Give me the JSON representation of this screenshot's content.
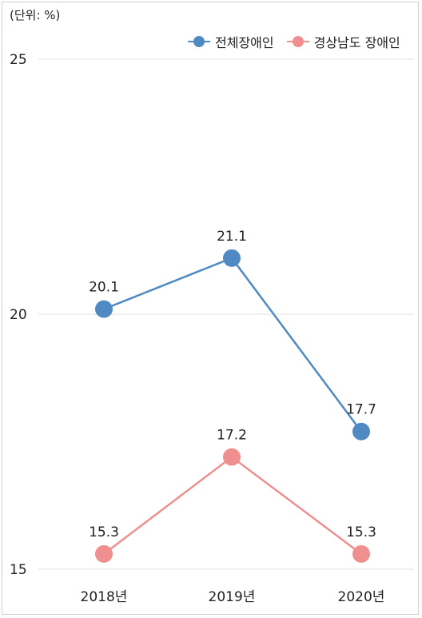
{
  "unit_label": "(단위: %)",
  "colors": {
    "series1": "#4f8ac3",
    "series2": "#ef8f8f",
    "grid": "#e2e2e2",
    "axis": "#cfcfcf"
  },
  "chart_data": {
    "type": "line",
    "categories": [
      "2018년",
      "2019년",
      "2020년"
    ],
    "ylim": [
      15,
      25
    ],
    "yticks": [
      15,
      20,
      25
    ],
    "grid": true,
    "legend_position": "top-right",
    "series": [
      {
        "name": "전체장애인",
        "values": [
          20.1,
          21.1,
          17.7
        ]
      },
      {
        "name": "경상남도 장애인",
        "values": [
          15.3,
          17.2,
          15.3
        ]
      }
    ]
  }
}
